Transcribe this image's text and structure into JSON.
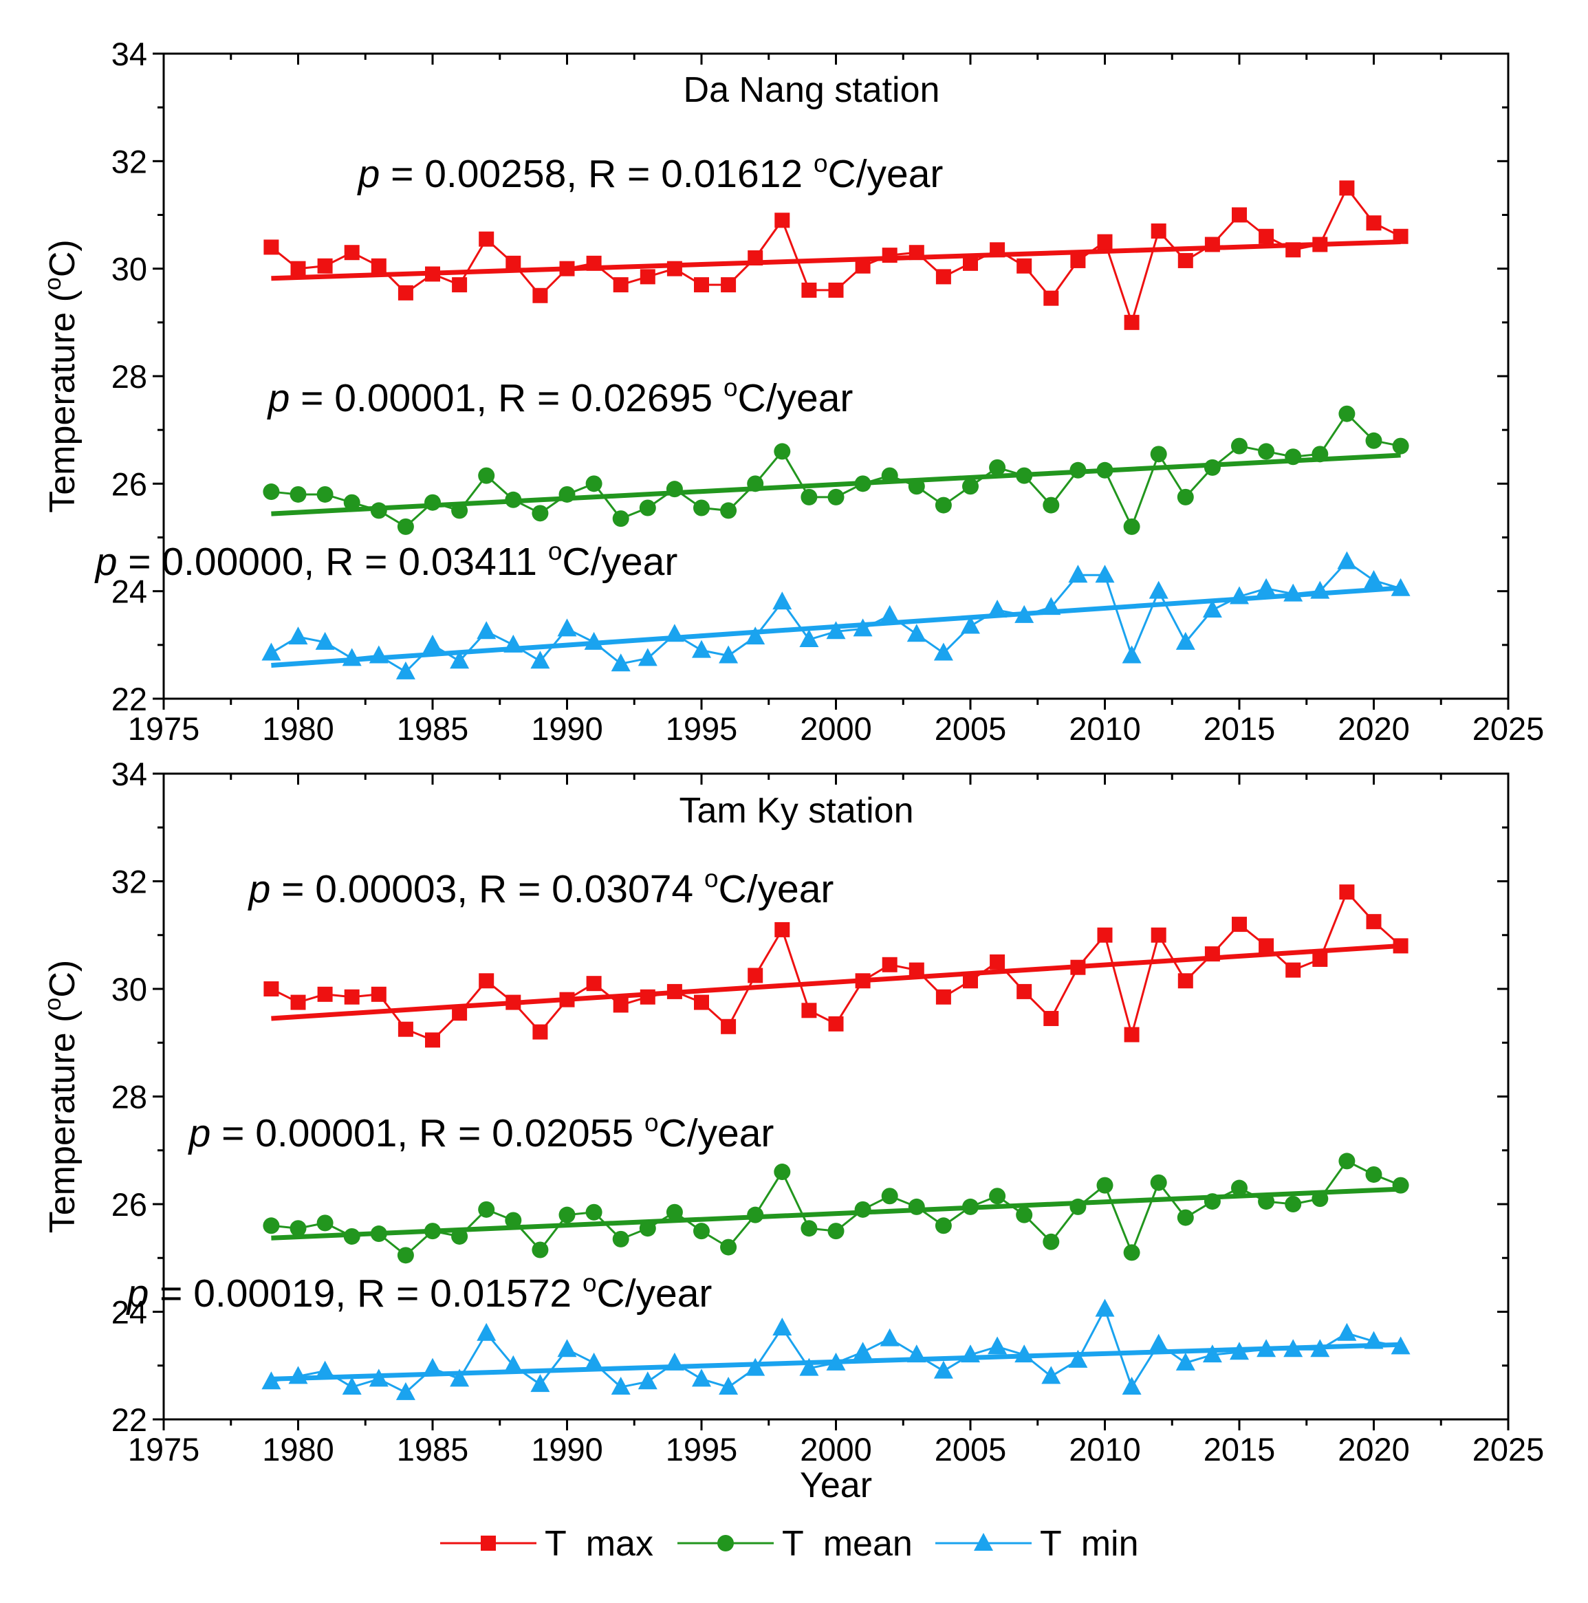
{
  "chart_data": [
    {
      "type": "line",
      "title": "Da Nang station",
      "xlabel": "",
      "ylabel": "Temperature (",
      "ylabel_sup": "o",
      "ylabel_end": "C)",
      "xlim": [
        1975,
        2025
      ],
      "ylim": [
        22,
        34
      ],
      "x_ticks": [
        1975,
        1980,
        1985,
        1990,
        1995,
        2000,
        2005,
        2010,
        2015,
        2020,
        2025
      ],
      "y_ticks": [
        22,
        24,
        26,
        28,
        30,
        32,
        34
      ],
      "x": [
        1979,
        1980,
        1981,
        1982,
        1983,
        1984,
        1985,
        1986,
        1987,
        1988,
        1989,
        1990,
        1991,
        1992,
        1993,
        1994,
        1995,
        1996,
        1997,
        1998,
        1999,
        2000,
        2001,
        2002,
        2003,
        2004,
        2005,
        2006,
        2007,
        2008,
        2009,
        2010,
        2011,
        2012,
        2013,
        2014,
        2015,
        2016,
        2017,
        2018,
        2019,
        2020,
        2021
      ],
      "series": [
        {
          "name": "T  max",
          "color": "#ee1111",
          "marker": "square",
          "values": [
            30.4,
            30.0,
            30.05,
            30.3,
            30.05,
            29.55,
            29.9,
            29.7,
            30.55,
            30.1,
            29.5,
            30.0,
            30.1,
            29.7,
            29.85,
            30.0,
            29.7,
            29.7,
            30.2,
            30.9,
            29.6,
            29.6,
            30.05,
            30.25,
            30.3,
            29.85,
            30.1,
            30.35,
            30.05,
            29.45,
            30.15,
            30.5,
            29.0,
            30.7,
            30.15,
            30.45,
            31.0,
            30.6,
            30.35,
            30.45,
            31.5,
            30.85,
            30.6
          ],
          "trend": [
            29.82,
            30.5
          ],
          "annotation_p": "p",
          "annotation_rest": " = 0.00258, R = 0.01612 ",
          "annotation_sup": "o",
          "annotation_end": "C/year"
        },
        {
          "name": "T  mean",
          "color": "#22961e",
          "marker": "circle",
          "values": [
            25.85,
            25.8,
            25.8,
            25.65,
            25.5,
            25.2,
            25.65,
            25.5,
            26.15,
            25.7,
            25.45,
            25.8,
            26.0,
            25.35,
            25.55,
            25.9,
            25.55,
            25.5,
            26.0,
            26.6,
            25.75,
            25.75,
            26.0,
            26.15,
            25.95,
            25.6,
            25.95,
            26.3,
            26.15,
            25.6,
            26.25,
            26.25,
            25.2,
            26.55,
            25.75,
            26.3,
            26.7,
            26.6,
            26.5,
            26.55,
            27.3,
            26.8,
            26.7
          ],
          "trend": [
            25.44,
            26.53
          ],
          "annotation_p": "p",
          "annotation_rest": " = 0.00001, R = 0.02695 ",
          "annotation_sup": "o",
          "annotation_end": "C/year"
        },
        {
          "name": "T  min",
          "color": "#1aa3ef",
          "marker": "triangle",
          "values": [
            22.85,
            23.15,
            23.05,
            22.75,
            22.8,
            22.5,
            23.0,
            22.7,
            23.25,
            23.0,
            22.7,
            23.3,
            23.05,
            22.65,
            22.75,
            23.2,
            22.9,
            22.8,
            23.15,
            23.8,
            23.1,
            23.25,
            23.3,
            23.55,
            23.2,
            22.85,
            23.35,
            23.65,
            23.55,
            23.7,
            24.3,
            24.3,
            22.8,
            24.0,
            23.05,
            23.65,
            23.9,
            24.05,
            23.95,
            24.0,
            24.55,
            24.2,
            24.05
          ],
          "trend": [
            22.62,
            24.06
          ],
          "annotation_p": "p",
          "annotation_rest": " = 0.00000, R = 0.03411 ",
          "annotation_sup": "o",
          "annotation_end": "C/year"
        }
      ]
    },
    {
      "type": "line",
      "title": "Tam Ky station",
      "xlabel": "Year",
      "ylabel": "Temperature (",
      "ylabel_sup": "o",
      "ylabel_end": "C)",
      "xlim": [
        1975,
        2025
      ],
      "ylim": [
        22,
        34
      ],
      "x_ticks": [
        1975,
        1980,
        1985,
        1990,
        1995,
        2000,
        2005,
        2010,
        2015,
        2020,
        2025
      ],
      "y_ticks": [
        22,
        24,
        26,
        28,
        30,
        32,
        34
      ],
      "x": [
        1979,
        1980,
        1981,
        1982,
        1983,
        1984,
        1985,
        1986,
        1987,
        1988,
        1989,
        1990,
        1991,
        1992,
        1993,
        1994,
        1995,
        1996,
        1997,
        1998,
        1999,
        2000,
        2001,
        2002,
        2003,
        2004,
        2005,
        2006,
        2007,
        2008,
        2009,
        2010,
        2011,
        2012,
        2013,
        2014,
        2015,
        2016,
        2017,
        2018,
        2019,
        2020,
        2021
      ],
      "series": [
        {
          "name": "T  max",
          "color": "#ee1111",
          "marker": "square",
          "values": [
            30.0,
            29.75,
            29.9,
            29.85,
            29.9,
            29.25,
            29.05,
            29.55,
            30.15,
            29.75,
            29.2,
            29.8,
            30.1,
            29.7,
            29.85,
            29.95,
            29.75,
            29.3,
            30.25,
            31.1,
            29.6,
            29.35,
            30.15,
            30.45,
            30.35,
            29.85,
            30.15,
            30.5,
            29.95,
            29.45,
            30.4,
            31.0,
            29.15,
            31.0,
            30.15,
            30.65,
            31.2,
            30.8,
            30.35,
            30.55,
            31.8,
            31.25,
            30.8
          ],
          "trend": [
            29.45,
            30.8
          ],
          "annotation_p": "p",
          "annotation_rest": " = 0.00003, R = 0.03074 ",
          "annotation_sup": "o",
          "annotation_end": "C/year"
        },
        {
          "name": "T  mean",
          "color": "#22961e",
          "marker": "circle",
          "values": [
            25.6,
            25.55,
            25.65,
            25.4,
            25.45,
            25.05,
            25.5,
            25.4,
            25.9,
            25.7,
            25.15,
            25.8,
            25.85,
            25.35,
            25.55,
            25.85,
            25.5,
            25.2,
            25.8,
            26.6,
            25.55,
            25.5,
            25.9,
            26.15,
            25.95,
            25.6,
            25.95,
            26.15,
            25.8,
            25.3,
            25.95,
            26.35,
            25.1,
            26.4,
            25.75,
            26.05,
            26.3,
            26.05,
            26.0,
            26.1,
            26.8,
            26.55,
            26.35
          ],
          "trend": [
            25.37,
            26.28
          ],
          "annotation_p": "p",
          "annotation_rest": " = 0.00001, R = 0.02055 ",
          "annotation_sup": "o",
          "annotation_end": "C/year"
        },
        {
          "name": "T  min",
          "color": "#1aa3ef",
          "marker": "triangle",
          "values": [
            22.7,
            22.8,
            22.9,
            22.6,
            22.75,
            22.5,
            22.95,
            22.75,
            23.6,
            23.0,
            22.65,
            23.3,
            23.05,
            22.6,
            22.7,
            23.05,
            22.75,
            22.6,
            22.95,
            23.7,
            22.95,
            23.05,
            23.25,
            23.5,
            23.2,
            22.9,
            23.2,
            23.35,
            23.2,
            22.8,
            23.1,
            24.05,
            22.6,
            23.4,
            23.05,
            23.2,
            23.25,
            23.3,
            23.3,
            23.3,
            23.6,
            23.45,
            23.35
          ],
          "trend": [
            22.75,
            23.39
          ],
          "annotation_p": "p",
          "annotation_rest": " = 0.00019, R = 0.01572 ",
          "annotation_sup": "o",
          "annotation_end": "C/year"
        }
      ]
    }
  ],
  "legend": {
    "entries": [
      {
        "label": "T  max",
        "color": "#ee1111",
        "marker": "square"
      },
      {
        "label": "T  mean",
        "color": "#22961e",
        "marker": "circle"
      },
      {
        "label": "T  min",
        "color": "#1aa3ef",
        "marker": "triangle"
      }
    ],
    "position": "bottom-center"
  }
}
